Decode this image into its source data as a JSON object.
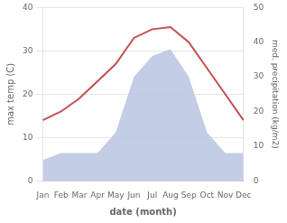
{
  "chart_data": {
    "type": "line",
    "xlabel": "date (month)",
    "ylabel": "max temp (C)",
    "y2label": "med. precipitation (kg/m2)",
    "categories": [
      "Jan",
      "Feb",
      "Mar",
      "Apr",
      "May",
      "Jun",
      "Jul",
      "Aug",
      "Sep",
      "Oct",
      "Nov",
      "Dec"
    ],
    "series": [
      {
        "type": "area",
        "color": "#b8c4e0",
        "axis": "y2",
        "values": [
          6,
          8,
          8,
          8,
          14,
          30,
          36,
          38,
          30,
          14,
          8,
          8
        ]
      },
      {
        "type": "line",
        "color": "#c0504d",
        "values": [
          14,
          16,
          19,
          23,
          27,
          33,
          35,
          35.5,
          32,
          26,
          20,
          14
        ]
      }
    ],
    "ylim": [
      0,
      40
    ],
    "yticks": [
      0,
      10,
      20,
      30,
      40
    ],
    "y2lim": [
      0,
      50
    ],
    "y2ticks": [
      0,
      10,
      20,
      30,
      40,
      50
    ],
    "grid": true
  }
}
